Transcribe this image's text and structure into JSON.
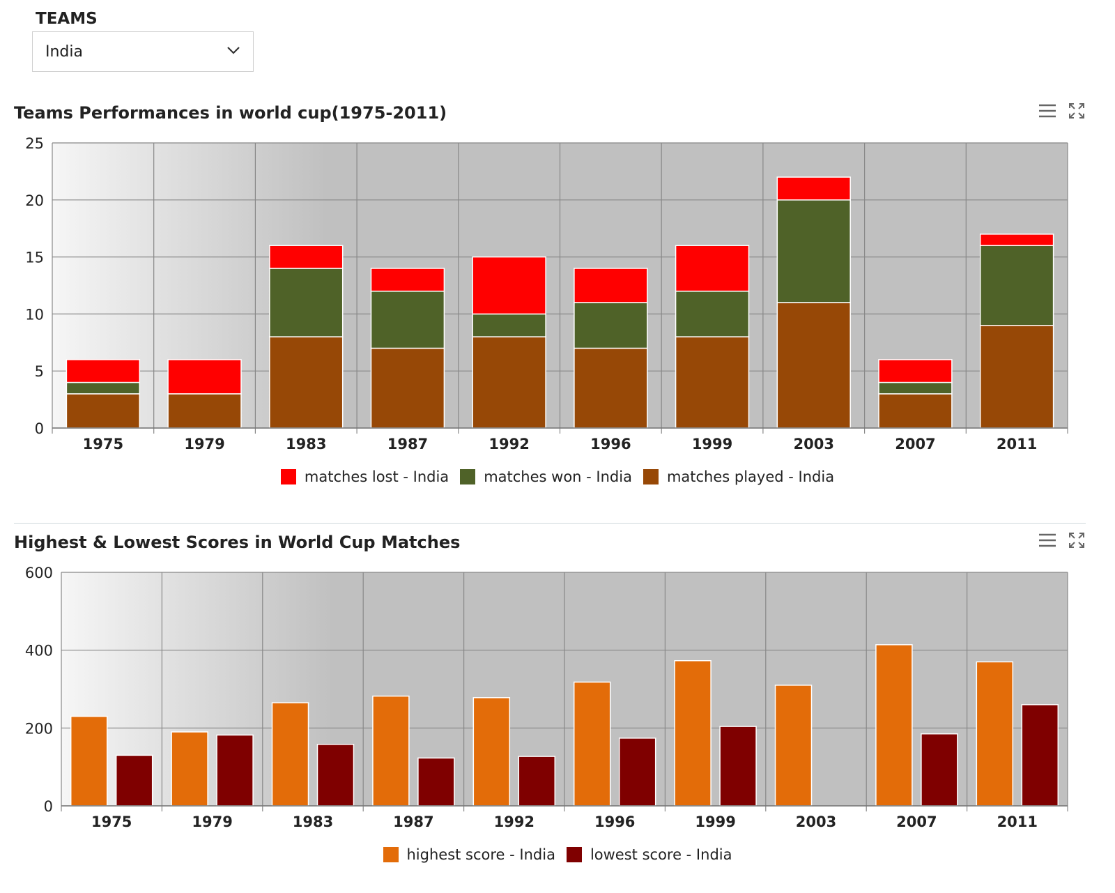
{
  "teams": {
    "label": "TEAMS",
    "selected": "India"
  },
  "charts": [
    {
      "title": "Teams Performances in world cup(1975-2011)",
      "menu_icon": "menu-icon",
      "fullscreen_icon": "fullscreen-icon"
    },
    {
      "title": "Highest & Lowest Scores in World Cup Matches",
      "menu_icon": "menu-icon",
      "fullscreen_icon": "fullscreen-icon"
    }
  ],
  "chart_data": [
    {
      "type": "bar",
      "stacked": true,
      "title": "Teams Performances in world cup(1975-2011)",
      "categories": [
        "1975",
        "1979",
        "1983",
        "1987",
        "1992",
        "1996",
        "1999",
        "2003",
        "2007",
        "2011"
      ],
      "series": [
        {
          "name": "matches lost - India",
          "color": "#ff0000",
          "values": [
            2,
            3,
            2,
            2,
            5,
            3,
            4,
            2,
            2,
            1
          ]
        },
        {
          "name": "matches won - India",
          "color": "#4f6228",
          "values": [
            1,
            0,
            6,
            5,
            2,
            4,
            4,
            9,
            1,
            7
          ]
        },
        {
          "name": "matches played - India",
          "color": "#974806",
          "values": [
            3,
            3,
            8,
            7,
            8,
            7,
            8,
            11,
            3,
            9
          ]
        }
      ],
      "stack_order": [
        "matches played - India",
        "matches won - India",
        "matches lost - India"
      ],
      "ylim": [
        0,
        25
      ],
      "yticks": [
        "0",
        "5",
        "10",
        "15",
        "20",
        "25"
      ],
      "grid": true,
      "legend_position": "bottom"
    },
    {
      "type": "bar",
      "stacked": false,
      "title": "Highest & Lowest Scores in World Cup Matches",
      "categories": [
        "1975",
        "1979",
        "1983",
        "1987",
        "1992",
        "1996",
        "1999",
        "2003",
        "2007",
        "2011"
      ],
      "series": [
        {
          "name": "highest score - India",
          "color": "#e36c09",
          "values": [
            230,
            190,
            265,
            282,
            278,
            318,
            373,
            310,
            414,
            370
          ]
        },
        {
          "name": "lowest score - India",
          "color": "#7f0000",
          "values": [
            130,
            182,
            158,
            123,
            127,
            174,
            204,
            0,
            185,
            260
          ]
        }
      ],
      "ylim": [
        0,
        600
      ],
      "yticks": [
        "0",
        "200",
        "400",
        "600"
      ],
      "grid": true,
      "legend_position": "bottom"
    }
  ]
}
